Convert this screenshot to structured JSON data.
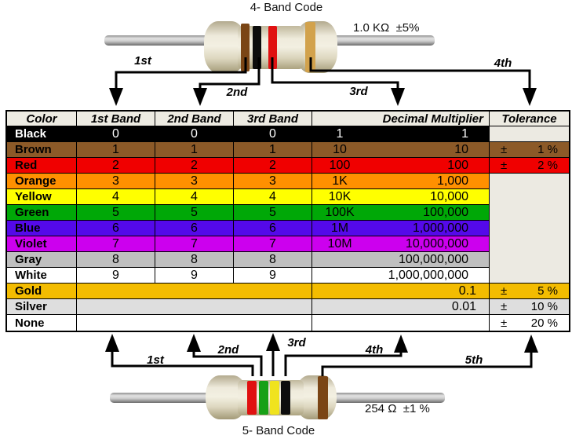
{
  "top_section": {
    "title": "4- Band Code",
    "value_label": "1.0 KΩ  ±5%",
    "resistor_bands": [
      "brown",
      "black",
      "red",
      "gold"
    ],
    "arrow_labels": [
      "1st",
      "2nd",
      "3rd",
      "4th"
    ]
  },
  "bottom_section": {
    "title": "5- Band Code",
    "value_label": "254 Ω  ±1 %",
    "resistor_bands": [
      "red",
      "green",
      "yellow",
      "black",
      "brown"
    ],
    "arrow_labels": [
      "1st",
      "2nd",
      "3rd",
      "4th",
      "5th"
    ]
  },
  "band_palette": {
    "brown": "#7A4515",
    "black": "#0d0d0d",
    "red": "#E01111",
    "gold": "#D2A24C",
    "green": "#17A017",
    "yellow": "#F0E31E"
  },
  "table": {
    "headers": [
      "Color",
      "1st Band",
      "2nd Band",
      "3rd Band",
      "Decimal Multiplier",
      "Tolerance"
    ],
    "empty_bg": "#ECEAE2",
    "rows": [
      {
        "name": "Black",
        "bg": "#000000",
        "fg": "#FFFFFF",
        "digits": [
          "0",
          "0",
          "0"
        ],
        "mult_short": "1",
        "mult_long": "1",
        "tol_pm": "",
        "tol_val": "",
        "tol_bg": "empty"
      },
      {
        "name": "Brown",
        "bg": "#8C5A28",
        "fg": "#000000",
        "digits": [
          "1",
          "1",
          "1"
        ],
        "mult_short": "10",
        "mult_long": "10",
        "tol_pm": "±",
        "tol_val": "1 %",
        "tol_bg": "self"
      },
      {
        "name": "Red",
        "bg": "#F00000",
        "fg": "#000000",
        "digits": [
          "2",
          "2",
          "2"
        ],
        "mult_short": "100",
        "mult_long": "100",
        "tol_pm": "±",
        "tol_val": "2 %",
        "tol_bg": "self"
      },
      {
        "name": "Orange",
        "bg": "#FF9000",
        "fg": "#000000",
        "digits": [
          "3",
          "3",
          "3"
        ],
        "mult_short": "1K",
        "mult_long": "1,000",
        "tol_pm": "",
        "tol_val": "",
        "tol_bg": "merge"
      },
      {
        "name": "Yellow",
        "bg": "#FFFF00",
        "fg": "#000000",
        "digits": [
          "4",
          "4",
          "4"
        ],
        "mult_short": "10K",
        "mult_long": "10,000",
        "tol_pm": "",
        "tol_val": "",
        "tol_bg": "merge"
      },
      {
        "name": "Green",
        "bg": "#00A807",
        "fg": "#000000",
        "digits": [
          "5",
          "5",
          "5"
        ],
        "mult_short": "100K",
        "mult_long": "100,000",
        "tol_pm": "",
        "tol_val": "",
        "tol_bg": "merge"
      },
      {
        "name": "Blue",
        "bg": "#5409E9",
        "fg": "#000000",
        "digits": [
          "6",
          "6",
          "6"
        ],
        "mult_short": "1M",
        "mult_long": "1,000,000",
        "tol_pm": "",
        "tol_val": "",
        "tol_bg": "merge"
      },
      {
        "name": "Violet",
        "bg": "#CC00EE",
        "fg": "#000000",
        "digits": [
          "7",
          "7",
          "7"
        ],
        "mult_short": "10M",
        "mult_long": "10,000,000",
        "tol_pm": "",
        "tol_val": "",
        "tol_bg": "merge"
      },
      {
        "name": "Gray",
        "bg": "#BFBFBF",
        "fg": "#000000",
        "digits": [
          "8",
          "8",
          "8"
        ],
        "mult_short": "",
        "mult_long": "100,000,000",
        "tol_pm": "",
        "tol_val": "",
        "tol_bg": "merge"
      },
      {
        "name": "White",
        "bg": "#FFFFFF",
        "fg": "#000000",
        "digits": [
          "9",
          "9",
          "9"
        ],
        "mult_short": "",
        "mult_long": "1,000,000,000",
        "tol_pm": "",
        "tol_val": "",
        "tol_bg": "merge-end"
      },
      {
        "name": "Gold",
        "bg": "#F3BC00",
        "fg": "#000000",
        "merged_bands": true,
        "mult_short": "",
        "mult_long": "0.1",
        "tol_pm": "±",
        "tol_val": "5 %",
        "tol_bg": "self"
      },
      {
        "name": "Silver",
        "bg": "#DEDEDE",
        "fg": "#000000",
        "merged_bands": true,
        "mult_short": "",
        "mult_long": "0.01",
        "tol_pm": "±",
        "tol_val": "10 %",
        "tol_bg": "self"
      },
      {
        "name": "None",
        "bg": "#FFFFFF",
        "fg": "#000000",
        "merged_bands": true,
        "mult_short": "",
        "mult_long": "",
        "tol_pm": "±",
        "tol_val": "20 %",
        "tol_bg": "self"
      }
    ]
  }
}
